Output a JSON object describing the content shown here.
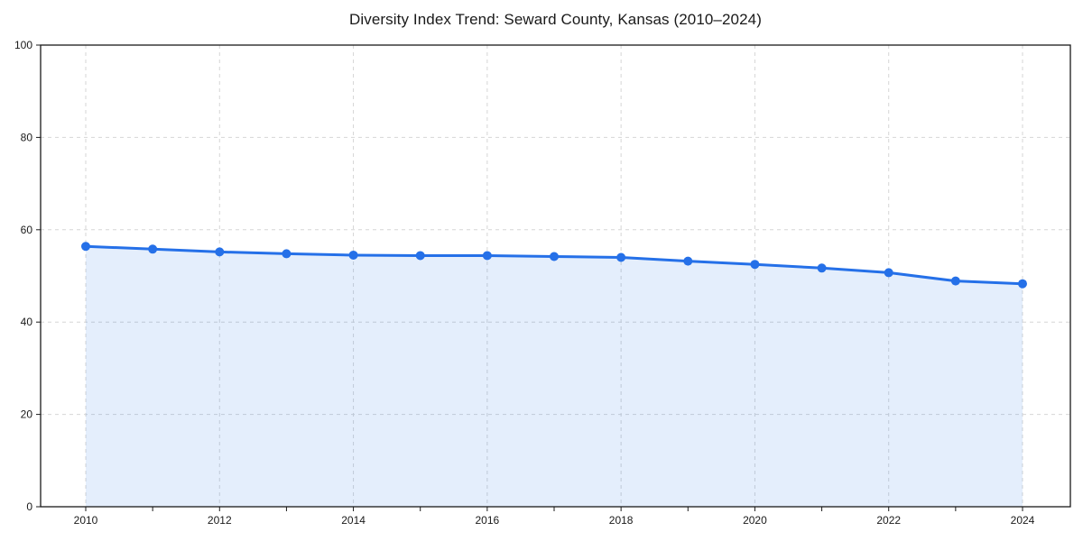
{
  "chart_data": {
    "type": "line",
    "title": "Diversity Index Trend: Seward County, Kansas (2010–2024)",
    "xlabel": "",
    "ylabel": "",
    "x": [
      2010,
      2011,
      2012,
      2013,
      2014,
      2015,
      2016,
      2017,
      2018,
      2019,
      2020,
      2021,
      2022,
      2023,
      2024
    ],
    "series": [
      {
        "name": "Diversity Index",
        "values": [
          56.4,
          55.8,
          55.2,
          54.8,
          54.5,
          54.4,
          54.4,
          54.2,
          54.0,
          53.2,
          52.5,
          51.7,
          50.7,
          48.9,
          48.3
        ]
      }
    ],
    "ylim": [
      0,
      100
    ],
    "yticks": [
      0,
      20,
      40,
      60,
      80,
      100
    ],
    "xticks_labeled": [
      2010,
      2012,
      2014,
      2016,
      2018,
      2020,
      2022,
      2024
    ],
    "xticks_minor_every_year": true,
    "grid": true,
    "grid_style": "dashed",
    "legend": "none",
    "area_fill": true,
    "marker": "circle",
    "colors": {
      "line": "#2570e8",
      "area": "#2570e8",
      "area_opacity": 0.12,
      "grid": "#d6d6d6",
      "axis": "#1a1a1a",
      "tick_label": "#1a1a1a",
      "title": "#1a1a1a",
      "background": "#ffffff"
    }
  }
}
